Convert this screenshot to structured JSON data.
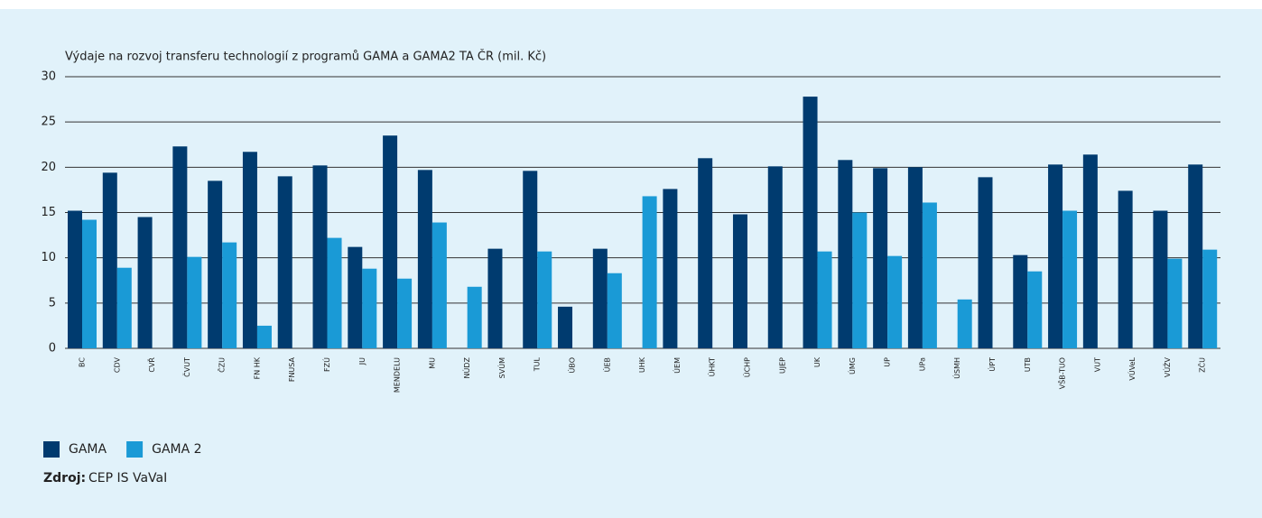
{
  "chart_data": {
    "type": "bar",
    "title": "Výdaje na rozvoj transferu technologií z programů GAMA a GAMA2 TA ČR (mil. Kč)",
    "categories": [
      "BC",
      "CDV",
      "CVŘ",
      "ČVUT",
      "ČZU",
      "FN HK",
      "FNUSA",
      "FZÚ",
      "JU",
      "MENDELU",
      "MU",
      "NÚDZ",
      "SVÚM",
      "TUL",
      "ÚBO",
      "ÚEB",
      "UHK",
      "ÚEM",
      "ÚHKT",
      "ÚCHP",
      "UJEP",
      "UK",
      "ÚMG",
      "UP",
      "UPa",
      "ÚSMH",
      "ÚPT",
      "UTB",
      "VŠB-TUO",
      "VUT",
      "VÚVeL",
      "VÚŽV",
      "ZČU"
    ],
    "series": [
      {
        "name": "GAMA",
        "color": "#003b6f",
        "values": [
          15.2,
          19.4,
          14.5,
          22.3,
          18.5,
          21.7,
          19.0,
          20.2,
          11.2,
          23.5,
          19.7,
          null,
          11.0,
          19.6,
          4.6,
          11.0,
          null,
          17.6,
          21.0,
          14.8,
          20.1,
          27.8,
          20.8,
          19.9,
          20.0,
          null,
          18.9,
          10.3,
          20.3,
          21.4,
          17.4,
          15.2,
          20.3
        ]
      },
      {
        "name": "GAMA 2",
        "color": "#1a9ad6",
        "values": [
          14.2,
          8.9,
          null,
          10.1,
          11.7,
          2.5,
          null,
          12.2,
          8.8,
          7.7,
          13.9,
          6.8,
          null,
          10.7,
          null,
          8.3,
          16.8,
          null,
          null,
          null,
          null,
          10.7,
          15.0,
          10.2,
          16.1,
          5.4,
          null,
          8.5,
          15.2,
          null,
          null,
          9.9,
          10.9
        ]
      }
    ],
    "ylim": [
      0,
      30
    ],
    "yticks": [
      0,
      5,
      10,
      15,
      20,
      25,
      30
    ],
    "grid": true,
    "source_label": "Zdroj:",
    "source": "CEP IS VaVaI"
  }
}
